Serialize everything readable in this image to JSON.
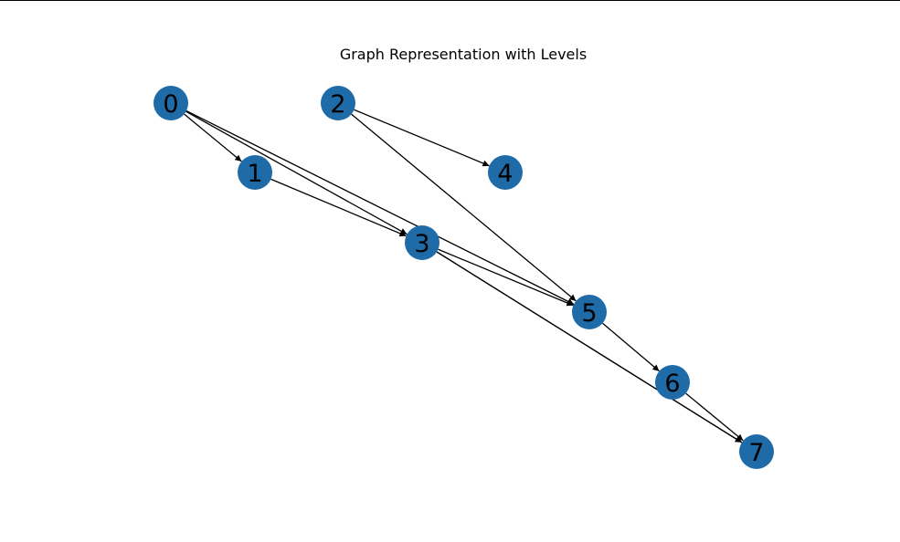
{
  "title": "Graph Representation with Levels",
  "node_color": "#1f6ba8",
  "edge_color": "#000000",
  "nodes": [
    {
      "id": "0",
      "label": "0"
    },
    {
      "id": "1",
      "label": "1"
    },
    {
      "id": "2",
      "label": "2"
    },
    {
      "id": "3",
      "label": "3"
    },
    {
      "id": "4",
      "label": "4"
    },
    {
      "id": "5",
      "label": "5"
    },
    {
      "id": "6",
      "label": "6"
    },
    {
      "id": "7",
      "label": "7"
    }
  ],
  "edges": [
    {
      "from": "0",
      "to": "1"
    },
    {
      "from": "0",
      "to": "3"
    },
    {
      "from": "0",
      "to": "5"
    },
    {
      "from": "1",
      "to": "3"
    },
    {
      "from": "2",
      "to": "4"
    },
    {
      "from": "2",
      "to": "5"
    },
    {
      "from": "3",
      "to": "5"
    },
    {
      "from": "3",
      "to": "7"
    },
    {
      "from": "3",
      "to": "7"
    },
    {
      "from": "5",
      "to": "6"
    },
    {
      "from": "6",
      "to": "7"
    }
  ]
}
